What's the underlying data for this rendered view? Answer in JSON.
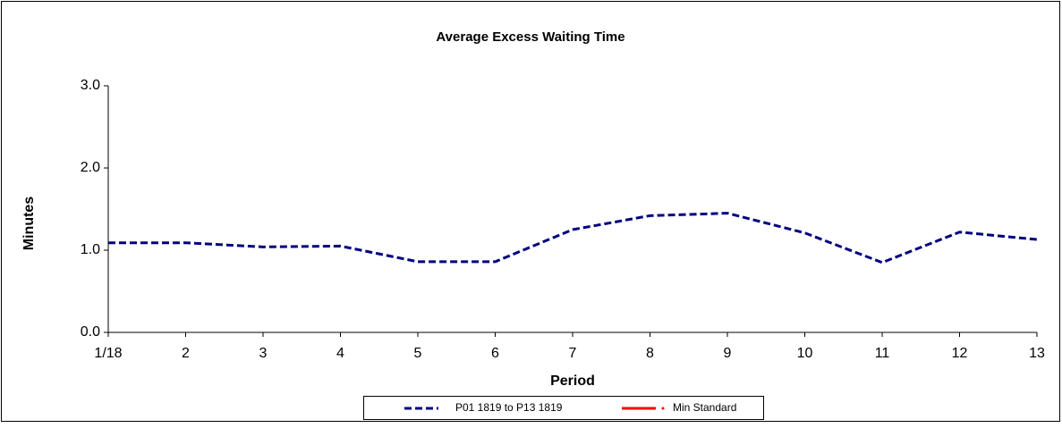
{
  "chart_data": {
    "type": "line",
    "title": "Average Excess Waiting Time",
    "x_label": "Period",
    "y_label": "Minutes",
    "categories": [
      "1/18",
      "2",
      "3",
      "4",
      "5",
      "6",
      "7",
      "8",
      "9",
      "10",
      "11",
      "12",
      "13"
    ],
    "series": [
      {
        "name": "P01 1819 to P13 1819",
        "color": "#000080",
        "style": "dashed",
        "values": [
          1.09,
          1.09,
          1.04,
          1.05,
          0.86,
          0.86,
          1.25,
          1.42,
          1.45,
          1.21,
          0.85,
          1.22,
          1.13
        ]
      },
      {
        "name": "Min Standard",
        "color": "#ff0000",
        "style": "solid",
        "values": [
          null,
          null,
          null,
          null,
          null,
          null,
          null,
          null,
          null,
          null,
          null,
          null,
          null
        ]
      }
    ],
    "ylim": [
      0,
      3
    ],
    "yticks": [
      {
        "value": 0,
        "label": "0.0"
      },
      {
        "value": 1,
        "label": "1.0"
      },
      {
        "value": 2,
        "label": "2.0"
      },
      {
        "value": 3,
        "label": "3.0"
      }
    ],
    "grid": false,
    "legend": "bottom"
  }
}
